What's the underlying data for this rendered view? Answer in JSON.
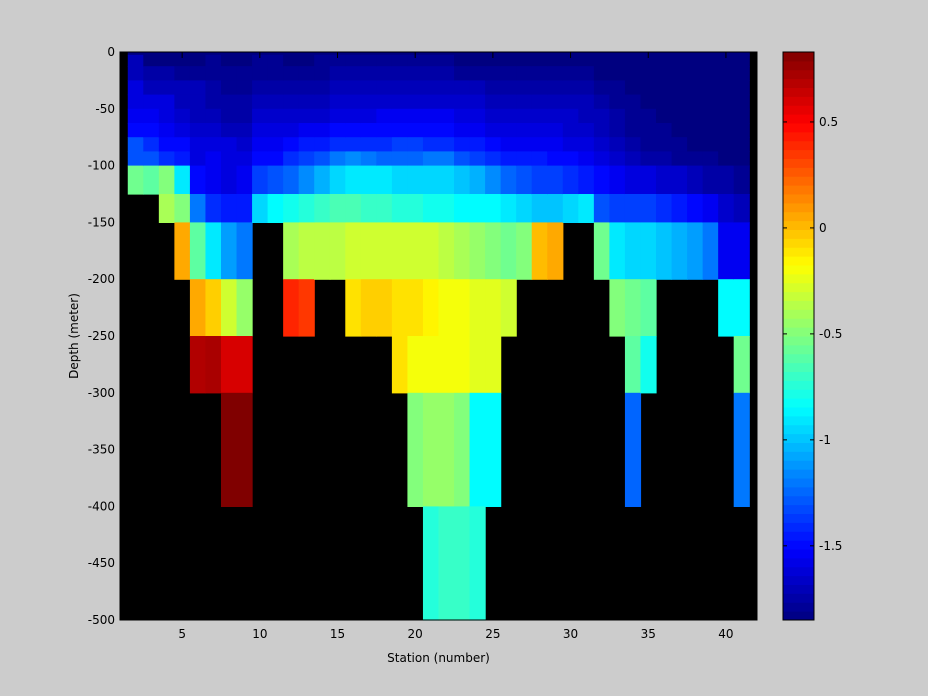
{
  "chart_data": {
    "type": "heatmap",
    "title": "",
    "xlabel": "Station (number)",
    "ylabel": "Depth (meter)",
    "xlim": [
      1,
      42
    ],
    "ylim": [
      -500,
      0
    ],
    "x_ticks": [
      5,
      10,
      15,
      20,
      25,
      30,
      35,
      40
    ],
    "x_tick_labels": [
      "5",
      "10",
      "15",
      "20",
      "25",
      "30",
      "35",
      "40"
    ],
    "y_ticks": [
      0,
      -50,
      -100,
      -150,
      -200,
      -250,
      -300,
      -350,
      -400,
      -450,
      -500
    ],
    "y_tick_labels": [
      "0",
      "-50",
      "-100",
      "-150",
      "-200",
      "-250",
      "-300",
      "-350",
      "-400",
      "-450",
      "-500"
    ],
    "missing_color": "#000000",
    "colormap": "jet",
    "colorbar": {
      "clim": [
        -1.85,
        0.83
      ],
      "ticks": [
        0.5,
        0,
        -0.5,
        -1,
        -1.5
      ],
      "tick_labels": [
        "0.5",
        "0",
        "-0.5",
        "-1",
        "-1.5"
      ]
    },
    "depth_rows": [
      {
        "top": 0,
        "bottom": -2.5
      },
      {
        "top": -2.5,
        "bottom": -12.5
      },
      {
        "top": -12.5,
        "bottom": -25
      },
      {
        "top": -25,
        "bottom": -37.5
      },
      {
        "top": -37.5,
        "bottom": -50
      },
      {
        "top": -50,
        "bottom": -62.5
      },
      {
        "top": -62.5,
        "bottom": -75
      },
      {
        "top": -75,
        "bottom": -87.5
      },
      {
        "top": -87.5,
        "bottom": -100
      },
      {
        "top": -100,
        "bottom": -125
      },
      {
        "top": -125,
        "bottom": -150
      },
      {
        "top": -150,
        "bottom": -200
      },
      {
        "top": -200,
        "bottom": -250
      },
      {
        "top": -250,
        "bottom": -300
      },
      {
        "top": -300,
        "bottom": -400
      },
      {
        "top": -400,
        "bottom": -500
      }
    ],
    "stations": [
      {
        "station": 2,
        "values": [
          -1.85,
          -1.7,
          -1.7,
          -1.6,
          -1.6,
          -1.55,
          -1.5,
          -1.3,
          -1.3,
          -0.55,
          null,
          null,
          null,
          null,
          null,
          null
        ]
      },
      {
        "station": 3,
        "values": [
          -1.85,
          -1.85,
          -1.75,
          -1.7,
          -1.6,
          -1.55,
          -1.5,
          -1.4,
          -1.3,
          -0.6,
          null,
          null,
          null,
          null,
          null,
          null
        ]
      },
      {
        "station": 4,
        "values": [
          -1.85,
          -1.85,
          -1.75,
          -1.7,
          -1.6,
          -1.6,
          -1.55,
          -1.5,
          -1.4,
          -0.5,
          -0.4,
          null,
          null,
          null,
          null,
          null
        ]
      },
      {
        "station": 5,
        "values": [
          -1.85,
          -1.85,
          -1.8,
          -1.7,
          -1.7,
          -1.65,
          -1.6,
          -1.5,
          -1.45,
          -0.9,
          -0.5,
          0.05,
          null,
          null,
          null,
          null
        ]
      },
      {
        "station": 6,
        "values": [
          -1.85,
          -1.85,
          -1.8,
          -1.7,
          -1.7,
          -1.7,
          -1.65,
          -1.6,
          -1.6,
          -1.5,
          -1.2,
          -0.6,
          0.05,
          0.7,
          null,
          null
        ]
      },
      {
        "station": 7,
        "values": [
          -1.85,
          -1.8,
          -1.8,
          -1.75,
          -1.75,
          -1.7,
          -1.65,
          -1.6,
          -1.55,
          -1.55,
          -1.4,
          -0.9,
          -0.05,
          0.72,
          null,
          null
        ]
      },
      {
        "station": 8,
        "values": [
          -1.85,
          -1.85,
          -1.8,
          -1.8,
          -1.75,
          -1.75,
          -1.7,
          -1.6,
          -1.6,
          -1.6,
          -1.45,
          -1.1,
          -0.3,
          0.6,
          0.83,
          null
        ]
      },
      {
        "station": 9,
        "values": [
          -1.85,
          -1.85,
          -1.8,
          -1.8,
          -1.75,
          -1.75,
          -1.7,
          -1.65,
          -1.6,
          -1.55,
          -1.45,
          -1.2,
          -0.45,
          0.6,
          0.83,
          null
        ]
      },
      {
        "station": 10,
        "values": [
          -1.85,
          -1.8,
          -1.8,
          -1.75,
          -1.7,
          -1.65,
          -1.6,
          -1.55,
          -1.5,
          -1.35,
          -0.95,
          null,
          null,
          null,
          null,
          null
        ]
      },
      {
        "station": 11,
        "values": [
          -1.85,
          -1.8,
          -1.8,
          -1.75,
          -1.7,
          -1.65,
          -1.6,
          -1.55,
          -1.5,
          -1.3,
          -0.85,
          null,
          null,
          null,
          null,
          null
        ]
      },
      {
        "station": 12,
        "values": [
          -1.85,
          -1.85,
          -1.8,
          -1.75,
          -1.7,
          -1.65,
          -1.6,
          -1.5,
          -1.4,
          -1.25,
          -0.8,
          -0.4,
          0.4,
          null,
          null,
          null
        ]
      },
      {
        "station": 13,
        "values": [
          -1.85,
          -1.85,
          -1.8,
          -1.75,
          -1.7,
          -1.65,
          -1.55,
          -1.45,
          -1.35,
          -1.15,
          -0.75,
          -0.35,
          0.35,
          null,
          null,
          null
        ]
      },
      {
        "station": 14,
        "values": [
          -1.85,
          -1.8,
          -1.8,
          -1.75,
          -1.7,
          -1.65,
          -1.55,
          -1.45,
          -1.3,
          -1.05,
          -0.7,
          -0.35,
          null,
          null,
          null,
          null
        ]
      },
      {
        "station": 15,
        "values": [
          -1.85,
          -1.8,
          -1.75,
          -1.7,
          -1.65,
          -1.6,
          -1.5,
          -1.4,
          -1.2,
          -0.95,
          -0.65,
          -0.35,
          null,
          null,
          null,
          null
        ]
      },
      {
        "station": 16,
        "values": [
          -1.85,
          -1.8,
          -1.75,
          -1.7,
          -1.65,
          -1.6,
          -1.5,
          -1.4,
          -1.15,
          -0.9,
          -0.65,
          -0.3,
          -0.1,
          null,
          null,
          null
        ]
      },
      {
        "station": 17,
        "values": [
          -1.85,
          -1.8,
          -1.75,
          -1.7,
          -1.65,
          -1.6,
          -1.5,
          -1.4,
          -1.2,
          -0.9,
          -0.7,
          -0.3,
          -0.05,
          null,
          null,
          null
        ]
      },
      {
        "station": 18,
        "values": [
          -1.85,
          -1.8,
          -1.75,
          -1.7,
          -1.65,
          -1.55,
          -1.5,
          -1.4,
          -1.25,
          -0.9,
          -0.7,
          -0.3,
          -0.05,
          null,
          null,
          null
        ]
      },
      {
        "station": 19,
        "values": [
          -1.85,
          -1.8,
          -1.75,
          -1.7,
          -1.65,
          -1.55,
          -1.5,
          -1.35,
          -1.25,
          -0.95,
          -0.75,
          -0.3,
          -0.1,
          -0.1,
          null,
          null
        ]
      },
      {
        "station": 20,
        "values": [
          -1.85,
          -1.8,
          -1.75,
          -1.7,
          -1.65,
          -1.55,
          -1.5,
          -1.35,
          -1.25,
          -0.95,
          -0.75,
          -0.3,
          -0.1,
          -0.2,
          -0.5,
          null
        ]
      },
      {
        "station": 21,
        "values": [
          -1.85,
          -1.8,
          -1.75,
          -1.7,
          -1.65,
          -1.55,
          -1.5,
          -1.4,
          -1.2,
          -0.95,
          -0.8,
          -0.3,
          -0.15,
          -0.2,
          -0.45,
          -0.75
        ]
      },
      {
        "station": 22,
        "values": [
          -1.85,
          -1.8,
          -1.75,
          -1.7,
          -1.65,
          -1.55,
          -1.5,
          -1.4,
          -1.2,
          -0.95,
          -0.8,
          -0.35,
          -0.2,
          -0.2,
          -0.45,
          -0.7
        ]
      },
      {
        "station": 23,
        "values": [
          -1.85,
          -1.85,
          -1.8,
          -1.7,
          -1.65,
          -1.6,
          -1.55,
          -1.45,
          -1.3,
          -1.0,
          -0.85,
          -0.4,
          -0.2,
          -0.2,
          -0.5,
          -0.7
        ]
      },
      {
        "station": 24,
        "values": [
          -1.85,
          -1.85,
          -1.8,
          -1.7,
          -1.65,
          -1.6,
          -1.55,
          -1.45,
          -1.35,
          -1.05,
          -0.85,
          -0.45,
          -0.25,
          -0.25,
          -0.85,
          -0.75
        ]
      },
      {
        "station": 25,
        "values": [
          -1.85,
          -1.85,
          -1.8,
          -1.75,
          -1.7,
          -1.65,
          -1.6,
          -1.5,
          -1.4,
          -1.15,
          -0.85,
          -0.5,
          -0.25,
          -0.25,
          -0.85,
          null
        ]
      },
      {
        "station": 26,
        "values": [
          -1.85,
          -1.85,
          -1.8,
          -1.75,
          -1.7,
          -1.65,
          -1.6,
          -1.55,
          -1.45,
          -1.25,
          -0.9,
          -0.55,
          -0.3,
          null,
          null,
          null
        ]
      },
      {
        "station": 27,
        "values": [
          -1.85,
          -1.85,
          -1.8,
          -1.75,
          -1.7,
          -1.65,
          -1.6,
          -1.55,
          -1.45,
          -1.3,
          -0.95,
          -0.5,
          null,
          null,
          null,
          null
        ]
      },
      {
        "station": 28,
        "values": [
          -1.85,
          -1.85,
          -1.8,
          -1.75,
          -1.7,
          -1.65,
          -1.6,
          -1.55,
          -1.45,
          -1.35,
          -1.0,
          0.0,
          null,
          null,
          null,
          null
        ]
      },
      {
        "station": 29,
        "values": [
          -1.85,
          -1.85,
          -1.8,
          -1.75,
          -1.7,
          -1.65,
          -1.6,
          -1.55,
          -1.5,
          -1.35,
          -1.0,
          0.05,
          null,
          null,
          null,
          null
        ]
      },
      {
        "station": 30,
        "values": [
          -1.85,
          -1.85,
          -1.8,
          -1.75,
          -1.7,
          -1.65,
          -1.65,
          -1.6,
          -1.5,
          -1.4,
          -0.95,
          null,
          null,
          null,
          null,
          null
        ]
      },
      {
        "station": 31,
        "values": [
          -1.85,
          -1.85,
          -1.8,
          -1.75,
          -1.7,
          -1.7,
          -1.65,
          -1.6,
          -1.55,
          -1.45,
          -0.9,
          null,
          null,
          null,
          null,
          null
        ]
      },
      {
        "station": 32,
        "values": [
          -1.85,
          -1.85,
          -1.85,
          -1.8,
          -1.75,
          -1.7,
          -1.7,
          -1.65,
          -1.6,
          -1.5,
          -1.3,
          -0.55,
          null,
          null,
          null,
          null
        ]
      },
      {
        "station": 33,
        "values": [
          -1.85,
          -1.85,
          -1.85,
          -1.8,
          -1.8,
          -1.75,
          -1.75,
          -1.7,
          -1.65,
          -1.55,
          -1.35,
          -0.9,
          -0.5,
          null,
          null,
          null
        ]
      },
      {
        "station": 34,
        "values": [
          -1.85,
          -1.85,
          -1.85,
          -1.85,
          -1.8,
          -1.8,
          -1.8,
          -1.75,
          -1.7,
          -1.6,
          -1.35,
          -0.95,
          -0.55,
          -0.6,
          -1.25,
          null
        ]
      },
      {
        "station": 35,
        "values": [
          -1.85,
          -1.85,
          -1.85,
          -1.85,
          -1.85,
          -1.8,
          -1.8,
          -1.8,
          -1.75,
          -1.6,
          -1.35,
          -0.95,
          -0.6,
          -0.8,
          null,
          null
        ]
      },
      {
        "station": 36,
        "values": [
          -1.85,
          -1.85,
          -1.85,
          -1.85,
          -1.85,
          -1.85,
          -1.8,
          -1.8,
          -1.75,
          -1.65,
          -1.4,
          -1.0,
          null,
          null,
          null,
          null
        ]
      },
      {
        "station": 37,
        "values": [
          -1.85,
          -1.85,
          -1.85,
          -1.85,
          -1.85,
          -1.85,
          -1.85,
          -1.8,
          -1.8,
          -1.65,
          -1.45,
          -1.05,
          null,
          null,
          null,
          null
        ]
      },
      {
        "station": 38,
        "values": [
          -1.85,
          -1.85,
          -1.85,
          -1.85,
          -1.85,
          -1.85,
          -1.85,
          -1.85,
          -1.8,
          -1.7,
          -1.5,
          -1.1,
          null,
          null,
          null,
          null
        ]
      },
      {
        "station": 39,
        "values": [
          -1.85,
          -1.85,
          -1.85,
          -1.85,
          -1.85,
          -1.85,
          -1.85,
          -1.85,
          -1.8,
          -1.75,
          -1.55,
          -1.2,
          null,
          null,
          null,
          null
        ]
      },
      {
        "station": 40,
        "values": [
          -1.85,
          -1.85,
          -1.85,
          -1.85,
          -1.85,
          -1.85,
          -1.85,
          -1.85,
          -1.85,
          -1.75,
          -1.65,
          -1.55,
          -0.85,
          null,
          null,
          null
        ]
      },
      {
        "station": 41,
        "values": [
          -1.85,
          -1.85,
          -1.85,
          -1.85,
          -1.85,
          -1.85,
          -1.85,
          -1.85,
          -1.85,
          -1.8,
          -1.7,
          -1.55,
          -0.85,
          -0.55,
          -1.2,
          null
        ]
      }
    ]
  }
}
